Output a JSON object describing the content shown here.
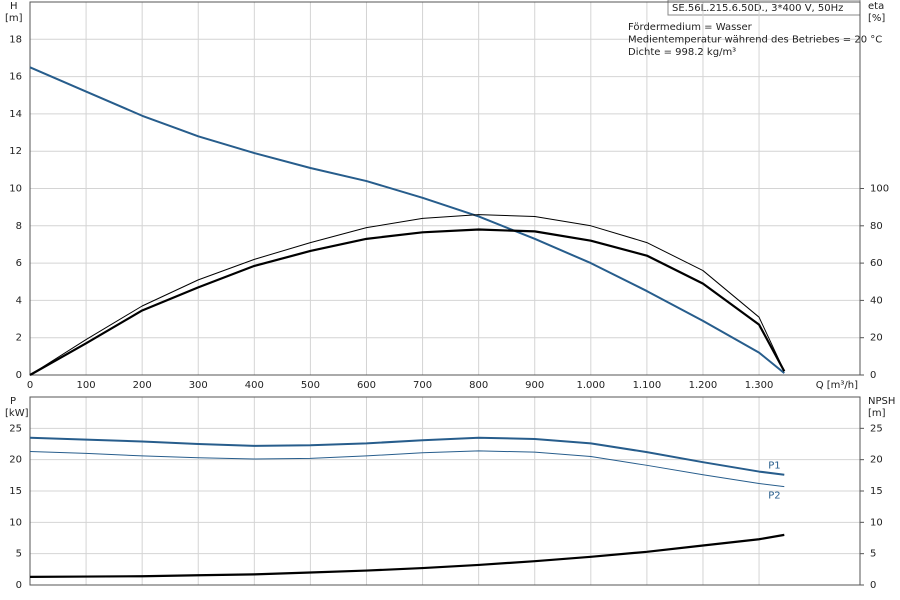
{
  "chart_data": [
    {
      "type": "line",
      "title": "SE.56L.215.6.50D., 3*400 V, 50Hz",
      "annotations": [
        "Fördermedium = Wasser",
        "Medientemperatur während des Betriebes = 20 °C",
        "Dichte = 998.2 kg/m³"
      ],
      "xlabel": "Q [m³/h]",
      "ylabel": "H",
      "yunit": "[m]",
      "y2label": "eta",
      "y2unit": "[%]",
      "x": [
        0,
        100,
        200,
        300,
        400,
        500,
        600,
        700,
        800,
        900,
        1000,
        1100,
        1200,
        1300,
        1345
      ],
      "xlim": [
        0,
        1480
      ],
      "xticks": [
        0,
        100,
        200,
        300,
        400,
        500,
        600,
        700,
        800,
        900,
        {
          "value": 1000,
          "label": "1.000"
        },
        {
          "value": 1100,
          "label": "1.100"
        },
        {
          "value": 1200,
          "label": "1.200"
        },
        {
          "value": 1300,
          "label": "1.300"
        }
      ],
      "ylim": [
        0,
        20
      ],
      "yticks": [
        0,
        2,
        4,
        6,
        8,
        10,
        12,
        14,
        16,
        18
      ],
      "y2lim": [
        0,
        200
      ],
      "y2ticks": [
        0,
        20,
        40,
        60,
        80,
        100
      ],
      "grid": true,
      "series": [
        {
          "color": "#275d8c",
          "width": 2,
          "values": [
            16.5,
            15.2,
            13.9,
            12.8,
            11.9,
            11.1,
            10.4,
            9.5,
            8.5,
            7.3,
            6.0,
            4.5,
            2.9,
            1.2,
            0.1
          ]
        },
        {
          "color": "#000000",
          "width": 2.2,
          "axis": "y2",
          "values": [
            0,
            17,
            34.6,
            47,
            58.5,
            66.5,
            73,
            76.5,
            78,
            77,
            72,
            64,
            49,
            27,
            2
          ]
        },
        {
          "color": "#000000",
          "width": 1,
          "axis": "y2",
          "values": [
            0,
            19,
            37,
            51,
            62,
            71,
            79,
            84,
            86,
            85,
            80,
            71,
            56,
            31,
            2
          ]
        }
      ]
    },
    {
      "type": "line",
      "ylabel": "P",
      "yunit": "[kW]",
      "y2label": "NPSH",
      "y2unit": "[m]",
      "x": [
        0,
        100,
        200,
        300,
        400,
        500,
        600,
        700,
        800,
        900,
        1000,
        1100,
        1200,
        1300,
        1345
      ],
      "xlim": [
        0,
        1480
      ],
      "xticks": [
        0,
        100,
        200,
        300,
        400,
        500,
        600,
        700,
        800,
        900,
        1000,
        1100,
        1200,
        1300
      ],
      "ylim": [
        0,
        30
      ],
      "yticks": [
        0,
        5,
        10,
        15,
        20,
        25
      ],
      "y2lim": [
        0,
        30
      ],
      "y2ticks": [
        0,
        5,
        10,
        15,
        20,
        25
      ],
      "grid": true,
      "series": [
        {
          "name": "P1",
          "color": "#275d8c",
          "width": 2,
          "values": [
            23.5,
            23.2,
            22.9,
            22.5,
            22.2,
            22.3,
            22.6,
            23.1,
            23.5,
            23.3,
            22.6,
            21.2,
            19.6,
            18.1,
            17.6
          ]
        },
        {
          "name": "P2",
          "color": "#275d8c",
          "width": 1,
          "values": [
            21.3,
            21.0,
            20.6,
            20.3,
            20.1,
            20.2,
            20.6,
            21.1,
            21.4,
            21.2,
            20.5,
            19.1,
            17.6,
            16.2,
            15.7
          ]
        },
        {
          "color": "#000000",
          "width": 2.2,
          "axis": "y2",
          "values": [
            1.3,
            1.35,
            1.4,
            1.55,
            1.7,
            2.0,
            2.3,
            2.7,
            3.2,
            3.8,
            4.5,
            5.3,
            6.3,
            7.3,
            8.0
          ]
        }
      ]
    }
  ]
}
